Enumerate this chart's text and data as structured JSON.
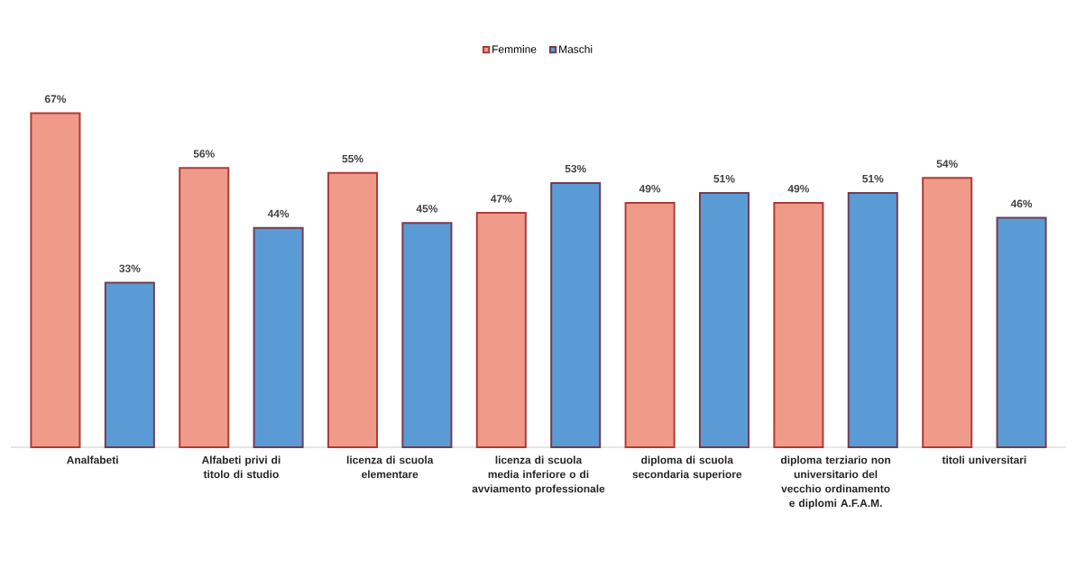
{
  "chart_data": {
    "type": "bar",
    "categories": [
      "Analfabeti",
      "Alfabeti privi di titolo di studio",
      "licenza di scuola elementare",
      "licenza di scuola media inferiore o di avviamento professionale",
      "diploma di scuola secondaria superiore",
      "diploma terziario non universitario del vecchio ordinamento e diplomi A.F.A.M.",
      "titoli universitari"
    ],
    "series": [
      {
        "name": "Femmine",
        "color": "#f09b8a",
        "values": [
          67,
          56,
          55,
          47,
          49,
          49,
          54
        ],
        "value_labels": [
          "67%",
          "56%",
          "55%",
          "47%",
          "49%",
          "49%",
          "54%"
        ]
      },
      {
        "name": "Maschi",
        "color": "#5b9bd5",
        "values": [
          33,
          44,
          45,
          53,
          51,
          51,
          46
        ],
        "value_labels": [
          "33%",
          "44%",
          "45%",
          "53%",
          "51%",
          "51%",
          "46%"
        ]
      }
    ],
    "legend": "top"
  }
}
